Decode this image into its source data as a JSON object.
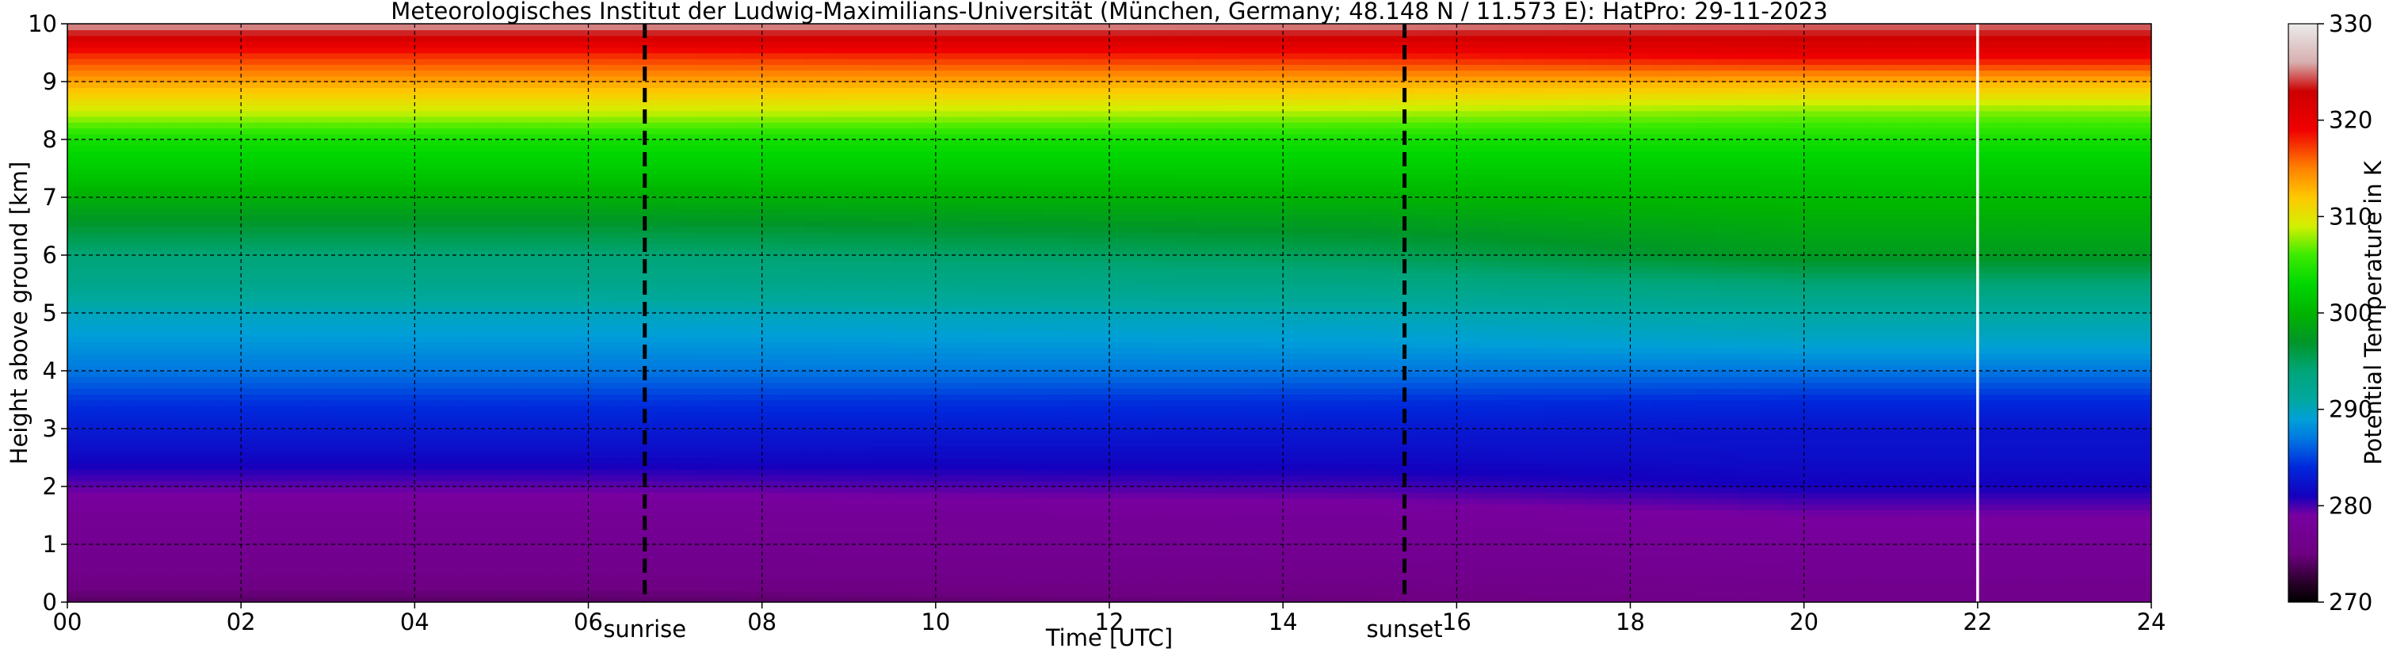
{
  "chart_data": {
    "type": "heatmap",
    "title": "Meteorologisches Institut der Ludwig-Maximilians-Universität (München, Germany; 48.148 N / 11.573 E):    HatPro: 29-11-2023",
    "xlabel": "Time [UTC]",
    "ylabel": "Height above ground [km]",
    "x_ticks": [
      "00",
      "02",
      "04",
      "06",
      "08",
      "10",
      "12",
      "14",
      "16",
      "18",
      "20",
      "22",
      "24"
    ],
    "x_tick_values": [
      0,
      2,
      4,
      6,
      8,
      10,
      12,
      14,
      16,
      18,
      20,
      22,
      24
    ],
    "y_ticks": [
      "0",
      "1",
      "2",
      "3",
      "4",
      "5",
      "6",
      "7",
      "8",
      "9",
      "10"
    ],
    "y_tick_values": [
      0,
      1,
      2,
      3,
      4,
      5,
      6,
      7,
      8,
      9,
      10
    ],
    "xlim": [
      0,
      24
    ],
    "ylim": [
      0,
      10
    ],
    "grid": true,
    "colorbar": {
      "label": "Potential Temperature in K",
      "ticks": [
        "270",
        "280",
        "290",
        "300",
        "310",
        "320",
        "330"
      ],
      "tick_values": [
        270,
        280,
        290,
        300,
        310,
        320,
        330
      ],
      "range": [
        270,
        330
      ]
    },
    "annotations": [
      {
        "text": "sunrise",
        "x": 6.65
      },
      {
        "text": "sunset",
        "x": 15.4
      }
    ],
    "data_gap_x": 22,
    "theta_profile_K": {
      "heights_km": [
        0,
        0.5,
        1,
        1.5,
        2,
        2.5,
        3,
        3.5,
        4,
        4.5,
        5,
        5.5,
        6,
        6.5,
        7,
        7.5,
        8,
        8.5,
        9,
        9.5,
        10
      ],
      "early_period_00_06": [
        274,
        276,
        277,
        277.5,
        279.5,
        281.5,
        283,
        284.5,
        287,
        288.5,
        290,
        292.5,
        294,
        296.5,
        299.5,
        302,
        304,
        309,
        313.5,
        318,
        326
      ],
      "late_period_20_24": [
        276,
        277,
        278,
        279,
        281,
        282,
        282.5,
        284,
        287,
        289.5,
        291,
        294,
        297.5,
        299,
        300.5,
        302,
        304,
        307.5,
        313,
        320,
        325
      ]
    }
  }
}
